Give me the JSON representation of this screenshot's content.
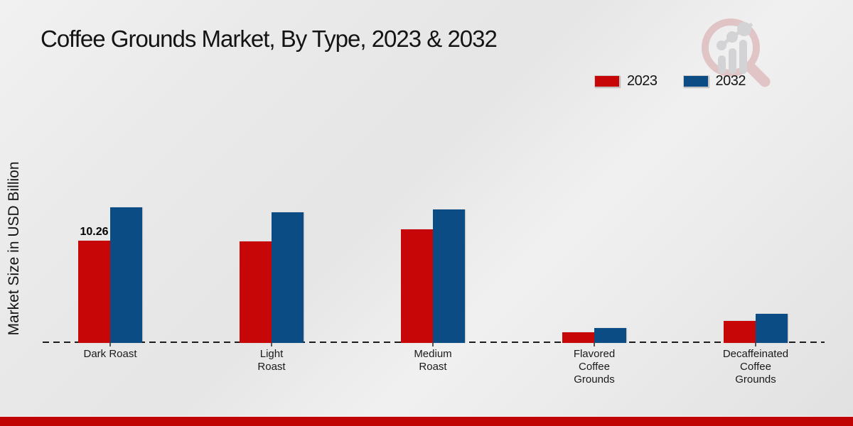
{
  "page": {
    "title": "Coffee Grounds Market, By Type, 2023 & 2032",
    "y_axis_label": "Market Size in USD Billion"
  },
  "chart_data": {
    "type": "bar",
    "title": "Coffee Grounds Market, By Type, 2023 & 2032",
    "xlabel": "",
    "ylabel": "Market Size in USD Billion",
    "categories": [
      "Dark Roast",
      "Light\nRoast",
      "Medium\nRoast",
      "Flavored\nCoffee\nGrounds",
      "Decaffeinated\nCoffee\nGrounds"
    ],
    "series": [
      {
        "name": "2023",
        "color": "#c70707",
        "values": [
          10.26,
          10.2,
          11.4,
          1.1,
          2.2
        ],
        "value_labels": [
          "10.26",
          "",
          "",
          "",
          ""
        ]
      },
      {
        "name": "2032",
        "color": "#0b4c84",
        "values": [
          13.6,
          13.1,
          13.4,
          1.5,
          2.9
        ],
        "value_labels": [
          "",
          "",
          "",
          "",
          ""
        ]
      }
    ],
    "ylim": [
      0,
      14.5
    ],
    "grid": "none",
    "baseline_style": "dashed",
    "legend_position": "top-right",
    "only_labeled_value": "10.26 (Dark Roast, 2023)"
  },
  "branding": {
    "watermark_icon": "magnifier-growth-chart-logo",
    "bottom_stripe_color": "#c00404"
  }
}
